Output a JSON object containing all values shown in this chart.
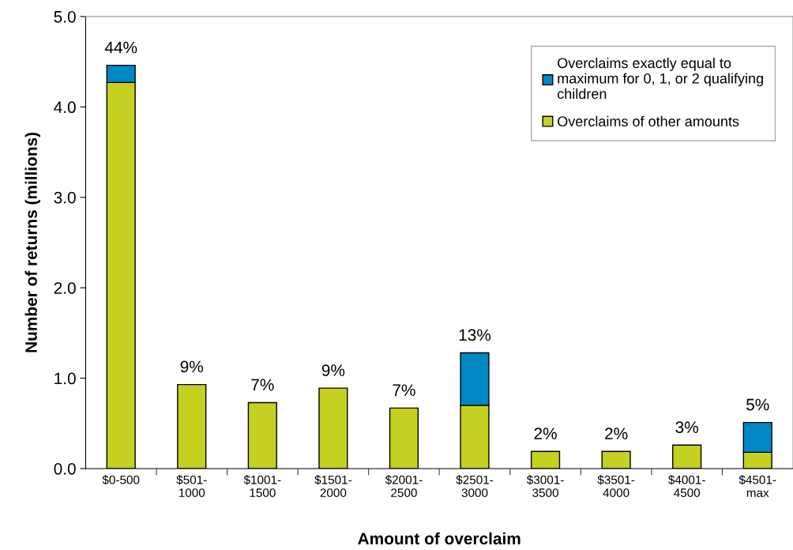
{
  "chart_data": {
    "type": "bar",
    "stacked": true,
    "xlabel": "Amount of overclaim",
    "ylabel": "Number of returns (millions)",
    "categories": [
      "$0-500",
      "$501-\n1000",
      "$1001-\n1500",
      "$1501-\n2000",
      "$2001-\n2500",
      "$2501-\n3000",
      "$3001-\n3500",
      "$3501-\n4000",
      "$4001-\n4500",
      "$4501-\nmax"
    ],
    "series": [
      {
        "name": "Overclaims of other amounts",
        "color": "#c4d022",
        "values": [
          4.27,
          0.93,
          0.73,
          0.89,
          0.67,
          0.7,
          0.19,
          0.19,
          0.26,
          0.18
        ]
      },
      {
        "name": "Overclaims exactly equal to maximum for 0, 1, or 2 qualifying children",
        "color": "#0088c4",
        "values": [
          0.19,
          null,
          null,
          null,
          null,
          0.58,
          null,
          null,
          null,
          0.33
        ]
      }
    ],
    "annotations": [
      {
        "text": "44%",
        "x": "$0-500",
        "y": 4.46
      },
      {
        "text": "9%",
        "x": "$501-\n1000",
        "y": 0.93
      },
      {
        "text": "7%",
        "x": "$1001-\n1500",
        "y": 0.73
      },
      {
        "text": "9%",
        "x": "$1501-\n2000",
        "y": 0.89
      },
      {
        "text": "7%",
        "x": "$2001-\n2500",
        "y": 0.67
      },
      {
        "text": "13%",
        "x": "$2501-\n3000",
        "y": 1.28
      },
      {
        "text": "2%",
        "x": "$3001-\n3500",
        "y": 0.19
      },
      {
        "text": "2%",
        "x": "$3501-\n4000",
        "y": 0.19
      },
      {
        "text": "3%",
        "x": "$4001-\n4500",
        "y": 0.26
      },
      {
        "text": "5%",
        "x": "$4501-\nmax",
        "y": 0.51
      }
    ],
    "ylim": [
      0,
      5
    ],
    "yticks": [
      {
        "value": 0,
        "label": "0.0"
      },
      {
        "value": 1,
        "label": "1.0"
      },
      {
        "value": 2,
        "label": "2.0"
      },
      {
        "value": 3,
        "label": "3.0"
      },
      {
        "value": 4,
        "label": "4.0"
      },
      {
        "value": 5,
        "label": "5.0"
      }
    ],
    "grid": false,
    "legend": "top right"
  }
}
